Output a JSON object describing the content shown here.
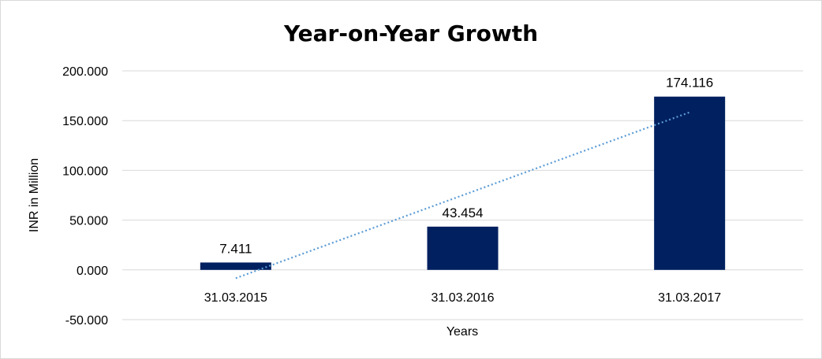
{
  "chart_data": {
    "type": "bar",
    "title": "Year-on-Year Growth",
    "xlabel": "Years",
    "ylabel": "INR in Million",
    "categories": [
      "31.03.2015",
      "31.03.2016",
      "31.03.2017"
    ],
    "values": [
      7.411,
      43.454,
      174.116
    ],
    "data_labels": [
      "7.411",
      "43.454",
      "174.116"
    ],
    "ylim": [
      -50,
      200
    ],
    "yticks": [
      -50,
      0,
      50,
      100,
      150,
      200
    ],
    "ytick_labels": [
      "-50.000",
      "0.000",
      "50.000",
      "100.000",
      "150.000",
      "200.000"
    ],
    "grid": true,
    "legend": "none",
    "trendline": {
      "type": "linear",
      "style": "dotted",
      "color": "#5b9bd5"
    },
    "colors": {
      "bar": "#002060",
      "grid": "#d9d9d9",
      "trendline": "#5b9bd5"
    }
  }
}
